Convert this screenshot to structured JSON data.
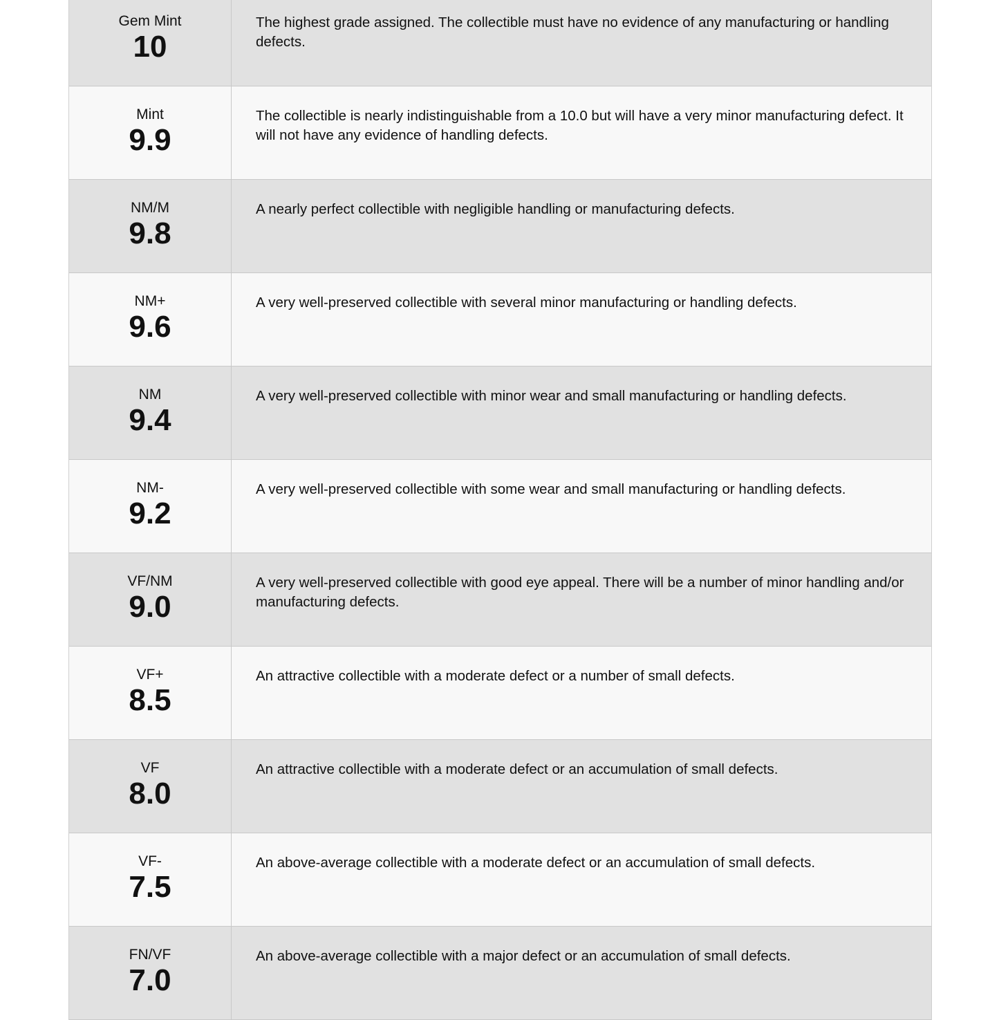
{
  "grades": [
    {
      "label": "Gem Mint",
      "grade": "10",
      "description": "The highest grade assigned. The collectible must have no evidence of any manufacturing or handling defects."
    },
    {
      "label": "Mint",
      "grade": "9.9",
      "description": "The collectible is nearly indistinguishable from a 10.0 but will have a very minor manufacturing defect. It will not have any evidence of handling defects."
    },
    {
      "label": "NM/M",
      "grade": "9.8",
      "description": "A nearly perfect collectible with negligible handling or manufacturing defects."
    },
    {
      "label": "NM+",
      "grade": "9.6",
      "description": "A very well-preserved collectible with several minor manufacturing or handling defects."
    },
    {
      "label": "NM",
      "grade": "9.4",
      "description": "A very well-preserved collectible with minor wear and small manufacturing or handling defects."
    },
    {
      "label": "NM-",
      "grade": "9.2",
      "description": "A very well-preserved collectible with some wear and small manufacturing or handling defects."
    },
    {
      "label": "VF/NM",
      "grade": "9.0",
      "description": "A very well-preserved collectible with good eye appeal. There will be a number of minor handling and/or manufacturing defects."
    },
    {
      "label": "VF+",
      "grade": "8.5",
      "description": "An attractive collectible with a moderate defect or a number of small defects."
    },
    {
      "label": "VF",
      "grade": "8.0",
      "description": "An attractive collectible with a moderate defect or an accumulation of small defects."
    },
    {
      "label": "VF-",
      "grade": "7.5",
      "description": "An above-average collectible with a moderate defect or an accumulation of small defects."
    },
    {
      "label": "FN/VF",
      "grade": "7.0",
      "description": "An above-average collectible with a major defect or an accumulation of small defects."
    }
  ]
}
